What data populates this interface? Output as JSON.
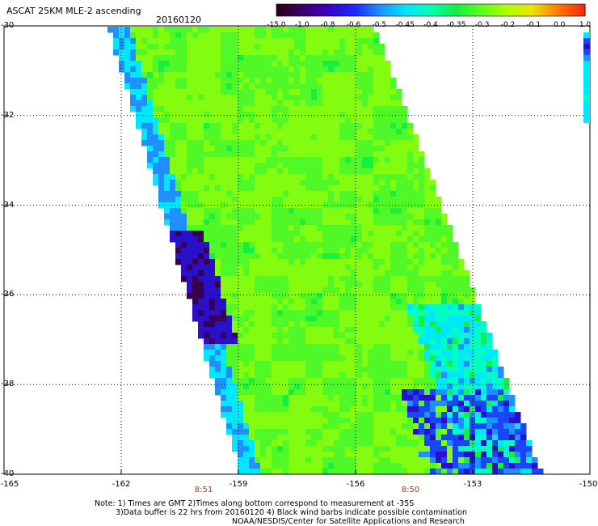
{
  "header": {
    "title": "ASCAT 25KM MLE-2 ascending",
    "date": "20160120"
  },
  "colorbar": {
    "labels": [
      "-15.0",
      "-1.0",
      "-0.8",
      "-0.6",
      "-0.5",
      "-0.45",
      "-0.4",
      "-0.35",
      "-0.3",
      "-0.2",
      "-0.1",
      "0.0",
      "1.0"
    ],
    "colors": [
      "#2b001a",
      "#3c006a",
      "#3a00c8",
      "#1a28ff",
      "#1e90ff",
      "#00e4ff",
      "#00ffb0",
      "#10f040",
      "#60ff20",
      "#b0ff00",
      "#f0e000",
      "#ff7a00",
      "#f52a0c"
    ]
  },
  "axes": {
    "lat_labels": [
      "-30",
      "-32",
      "-34",
      "-36",
      "-38",
      "-40"
    ],
    "lon_labels": [
      "-165",
      "-162",
      "-159",
      "-156",
      "-153",
      "-150"
    ],
    "lat_range": [
      -40,
      -30
    ],
    "lon_range": [
      -165,
      -150
    ]
  },
  "times": [
    "8:51",
    "8:50"
  ],
  "notes": [
    "Note: 1) Times are GMT 2)Times along bottom correspond to measurement at -35S",
    "3)Data buffer is 22 hrs from 20160120 4) Black wind barbs indicate possible contamination",
    "NOAA/NESDIS/Center for Satellite Applications and Research"
  ]
}
